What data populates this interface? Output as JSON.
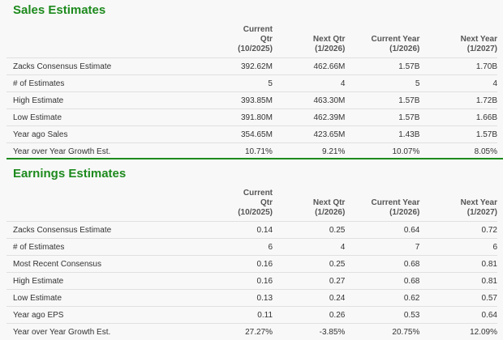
{
  "sales": {
    "title": "Sales Estimates",
    "headers": [
      [
        "Current Qtr",
        "(10/2025)"
      ],
      [
        "Next Qtr",
        "(1/2026)"
      ],
      [
        "Current Year",
        "(1/2026)"
      ],
      [
        "Next Year",
        "(1/2027)"
      ]
    ],
    "rows": [
      {
        "label": "Zacks Consensus Estimate",
        "values": [
          "392.62M",
          "462.66M",
          "1.57B",
          "1.70B"
        ]
      },
      {
        "label": "# of Estimates",
        "values": [
          "5",
          "4",
          "5",
          "4"
        ]
      },
      {
        "label": "High Estimate",
        "values": [
          "393.85M",
          "463.30M",
          "1.57B",
          "1.72B"
        ]
      },
      {
        "label": "Low Estimate",
        "values": [
          "391.80M",
          "462.39M",
          "1.57B",
          "1.66B"
        ]
      },
      {
        "label": "Year ago Sales",
        "values": [
          "354.65M",
          "423.65M",
          "1.43B",
          "1.57B"
        ]
      },
      {
        "label": "Year over Year Growth Est.",
        "values": [
          "10.71%",
          "9.21%",
          "10.07%",
          "8.05%"
        ]
      }
    ]
  },
  "earnings": {
    "title": "Earnings Estimates",
    "headers": [
      [
        "Current Qtr",
        "(10/2025)"
      ],
      [
        "Next Qtr",
        "(1/2026)"
      ],
      [
        "Current Year",
        "(1/2026)"
      ],
      [
        "Next Year",
        "(1/2027)"
      ]
    ],
    "rows": [
      {
        "label": "Zacks Consensus Estimate",
        "values": [
          "0.14",
          "0.25",
          "0.64",
          "0.72"
        ]
      },
      {
        "label": "# of Estimates",
        "values": [
          "6",
          "4",
          "7",
          "6"
        ]
      },
      {
        "label": "Most Recent Consensus",
        "values": [
          "0.16",
          "0.25",
          "0.68",
          "0.81"
        ]
      },
      {
        "label": "High Estimate",
        "values": [
          "0.16",
          "0.27",
          "0.68",
          "0.81"
        ]
      },
      {
        "label": "Low Estimate",
        "values": [
          "0.13",
          "0.24",
          "0.62",
          "0.57"
        ]
      },
      {
        "label": "Year ago EPS",
        "values": [
          "0.11",
          "0.26",
          "0.53",
          "0.64"
        ]
      },
      {
        "label": "Year over Year Growth Est.",
        "values": [
          "27.27%",
          "-3.85%",
          "20.75%",
          "12.09%"
        ]
      }
    ]
  },
  "colors": {
    "accent": "#1d8a1d",
    "rule": "#e0e0e0"
  }
}
